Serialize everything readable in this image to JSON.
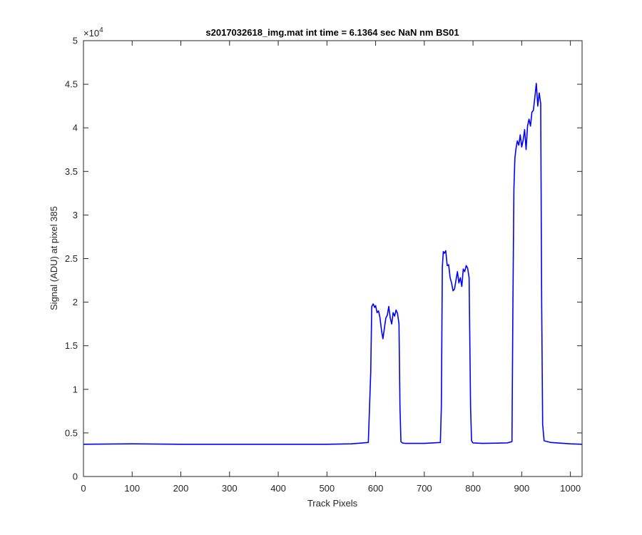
{
  "chart_data": {
    "type": "line",
    "title": "s2017032618_img.mat int time = 6.1364 sec  NaN nm BS01",
    "xlabel": "Track Pixels",
    "ylabel": "Signal (ADU) at pixel 385",
    "xlim": [
      0,
      1024
    ],
    "ylim": [
      0,
      50000
    ],
    "x_ticks": [
      0,
      100,
      200,
      300,
      400,
      500,
      600,
      700,
      800,
      900,
      1000
    ],
    "y_ticks": [
      0,
      5000,
      10000,
      15000,
      20000,
      25000,
      30000,
      35000,
      40000,
      45000,
      50000
    ],
    "y_tick_labels": [
      "0",
      "0.5",
      "1",
      "1.5",
      "2",
      "2.5",
      "3",
      "3.5",
      "4",
      "4.5",
      "5"
    ],
    "y_exponent_base": "×10",
    "y_exponent_power": "4",
    "grid": false,
    "box": true,
    "series": [
      {
        "color": "#0000ff",
        "x": [
          0,
          100,
          200,
          300,
          400,
          500,
          550,
          585,
          590,
          592,
          595,
          598,
          600,
          603,
          606,
          609,
          612,
          615,
          618,
          621,
          624,
          627,
          630,
          633,
          636,
          639,
          642,
          645,
          648,
          650,
          652,
          655,
          660,
          700,
          733,
          735,
          737,
          739,
          741,
          744,
          747,
          750,
          753,
          756,
          759,
          762,
          765,
          768,
          771,
          774,
          777,
          780,
          783,
          786,
          789,
          792,
          795,
          797,
          800,
          820,
          870,
          880,
          882,
          884,
          886,
          888,
          891,
          894,
          897,
          900,
          903,
          906,
          909,
          912,
          915,
          918,
          921,
          924,
          927,
          930,
          933,
          936,
          939,
          941,
          943,
          946,
          960,
          1000,
          1024
        ],
        "y": [
          3700,
          3750,
          3700,
          3700,
          3700,
          3700,
          3750,
          3900,
          12000,
          19500,
          19800,
          19400,
          19600,
          18800,
          19000,
          18200,
          16800,
          15800,
          17000,
          18200,
          18500,
          19500,
          18200,
          17500,
          18800,
          18400,
          19100,
          18700,
          17500,
          8000,
          4000,
          3850,
          3800,
          3800,
          3900,
          8000,
          24000,
          25800,
          25600,
          25900,
          24200,
          24300,
          22800,
          22200,
          21300,
          21500,
          22500,
          23500,
          22200,
          22800,
          21800,
          23800,
          23500,
          24200,
          23900,
          22800,
          8000,
          4100,
          3850,
          3800,
          3850,
          4000,
          20000,
          33000,
          36500,
          37500,
          38500,
          38000,
          39200,
          37800,
          38600,
          39800,
          37500,
          40200,
          41000,
          40200,
          41800,
          42000,
          43500,
          45100,
          42500,
          44000,
          42800,
          20000,
          6000,
          4100,
          3900,
          3750,
          3700
        ]
      }
    ]
  }
}
